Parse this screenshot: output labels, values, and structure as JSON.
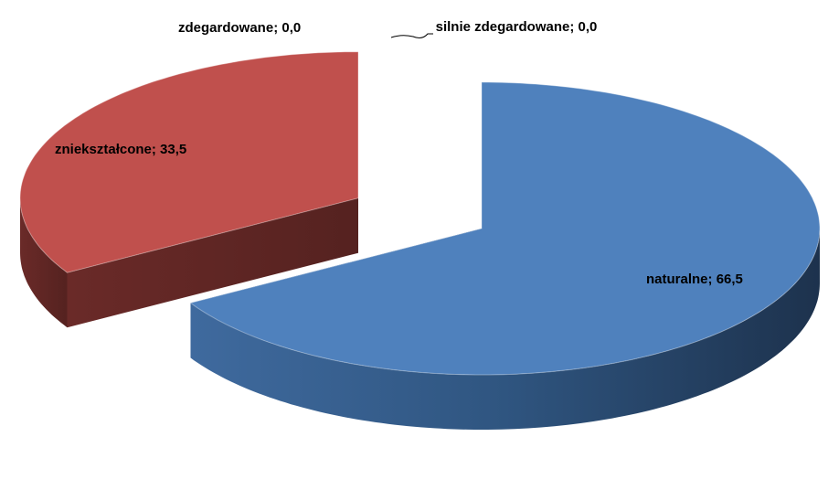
{
  "chart_data": {
    "type": "pie3d",
    "categories": [
      "naturalne",
      "zniekształcone",
      "zdegardowane",
      "silnie zdegardowane"
    ],
    "values": [
      66.5,
      33.5,
      0.0,
      0.0
    ],
    "value_labels": [
      "66,5",
      "33,5",
      "0,0",
      "0,0"
    ],
    "colors": [
      "#4f81bd",
      "#c0504d",
      "#9bbb59",
      "#8064a2"
    ],
    "explode": [
      0,
      0.42,
      0,
      0
    ]
  }
}
